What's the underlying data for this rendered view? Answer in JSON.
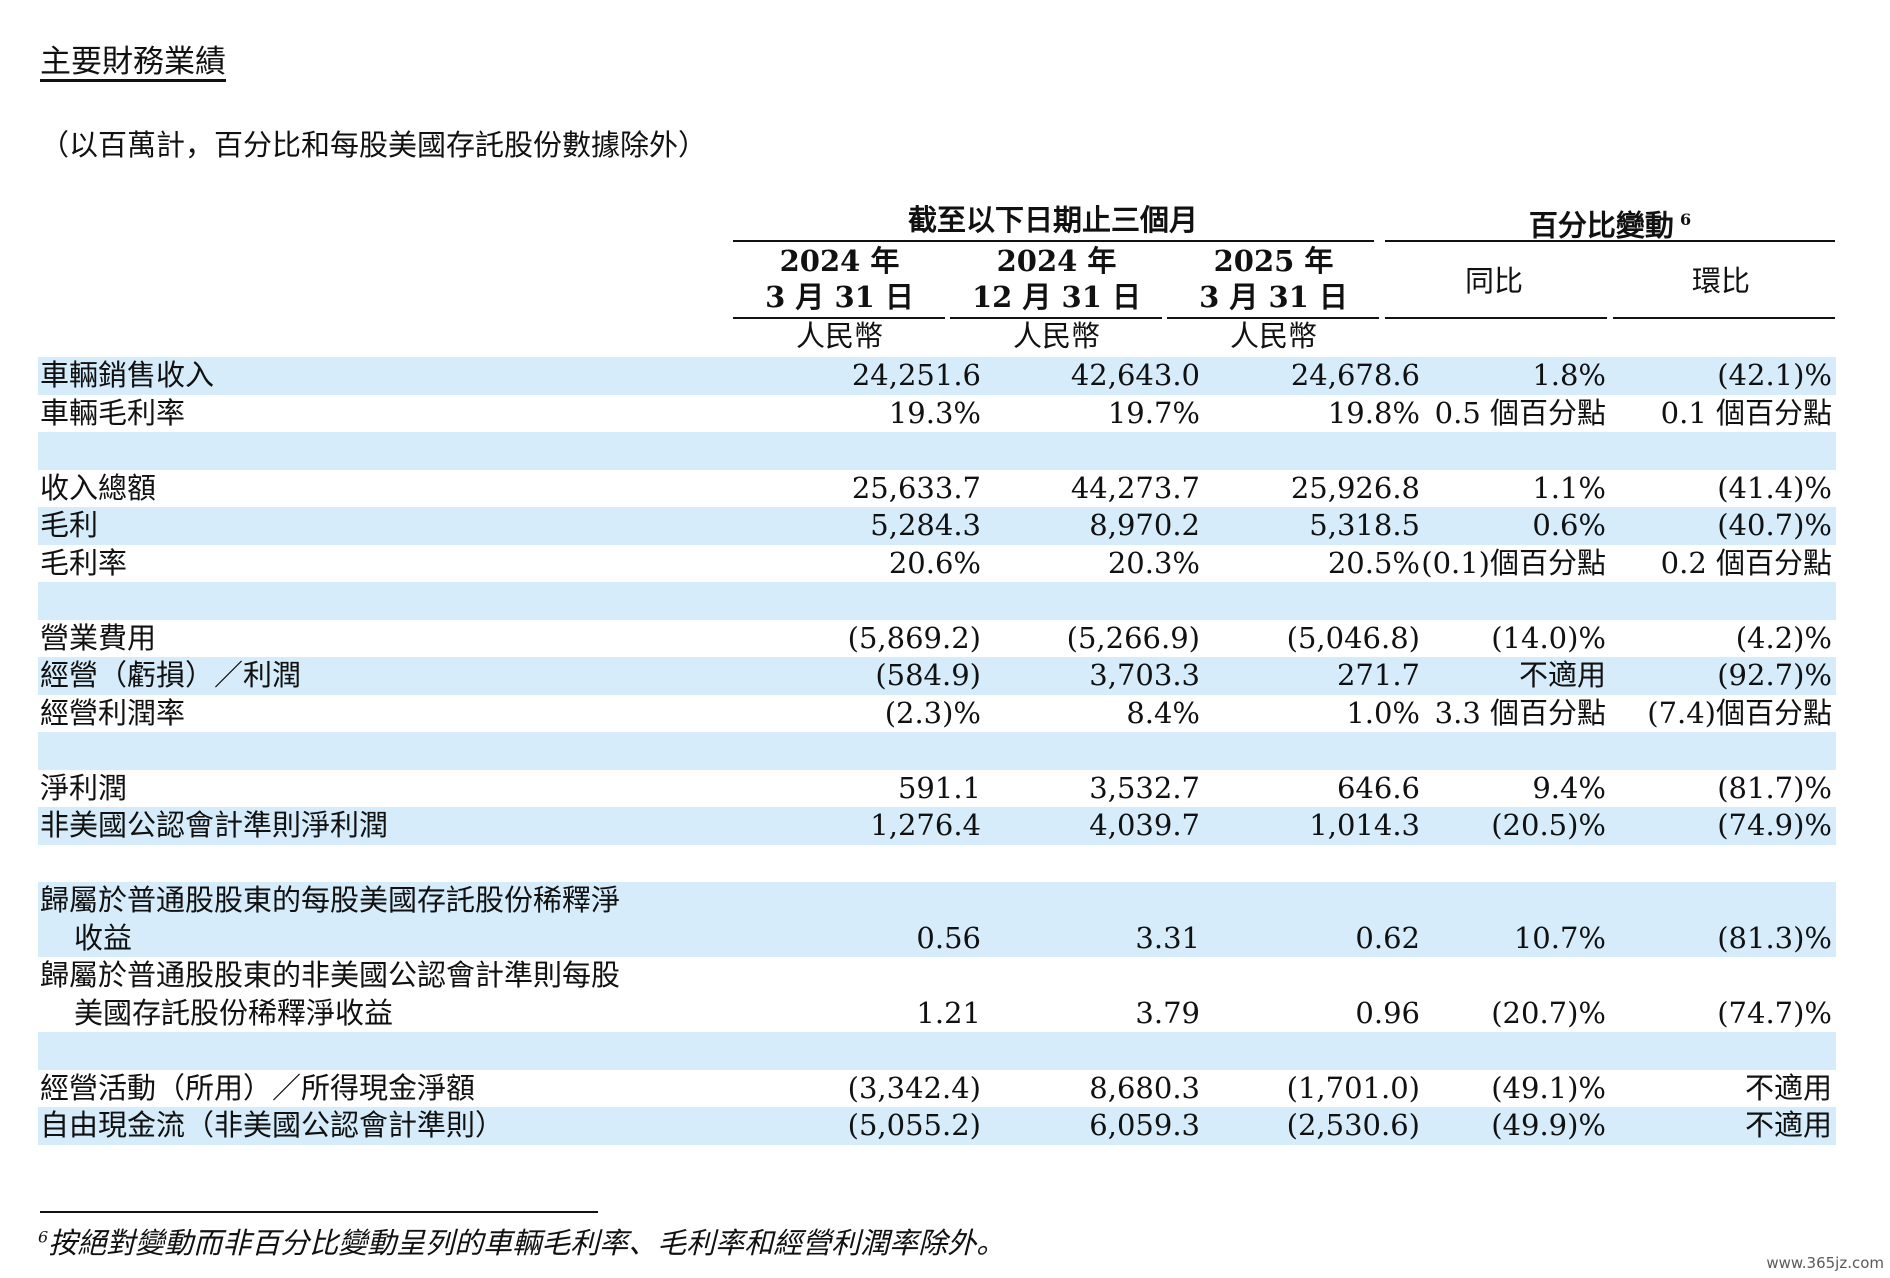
{
  "title": "主要財務業績",
  "subtitle": "（以百萬計，百分比和每股美國存託股份數據除外）",
  "header": {
    "group_period": "截至以下日期止三個月",
    "group_change": "百分比變動",
    "group_change_note": "6",
    "columns": [
      {
        "year": "2024 年",
        "date": "3 月 31 日",
        "currency": "人民幣"
      },
      {
        "year": "2024 年",
        "date": "12 月 31 日",
        "currency": "人民幣"
      },
      {
        "year": "2025 年",
        "date": "3 月 31 日",
        "currency": "人民幣"
      }
    ],
    "yoy": "同比",
    "qoq": "環比"
  },
  "rows": [
    {
      "label": "車輛銷售收入",
      "v": [
        "24,251.6",
        "42,643.0",
        "24,678.6",
        "1.8%",
        "(42.1)%"
      ]
    },
    {
      "label": "車輛毛利率",
      "v": [
        "19.3%",
        "19.7%",
        "19.8%",
        "0.5 個百分點",
        "0.1 個百分點"
      ]
    },
    {
      "label": "收入總額",
      "v": [
        "25,633.7",
        "44,273.7",
        "25,926.8",
        "1.1%",
        "(41.4)%"
      ]
    },
    {
      "label": "毛利",
      "v": [
        "5,284.3",
        "8,970.2",
        "5,318.5",
        "0.6%",
        "(40.7)%"
      ]
    },
    {
      "label": "毛利率",
      "v": [
        "20.6%",
        "20.3%",
        "20.5%",
        "(0.1)個百分點",
        "0.2 個百分點"
      ]
    },
    {
      "label": "營業費用",
      "v": [
        "(5,869.2)",
        "(5,266.9)",
        "(5,046.8)",
        "(14.0)%",
        "(4.2)%"
      ]
    },
    {
      "label": "經營（虧損）／利潤",
      "v": [
        "(584.9)",
        "3,703.3",
        "271.7",
        "不適用",
        "(92.7)%"
      ]
    },
    {
      "label": "經營利潤率",
      "v": [
        "(2.3)%",
        "8.4%",
        "1.0%",
        "3.3 個百分點",
        "(7.4)個百分點"
      ]
    },
    {
      "label": "淨利潤",
      "v": [
        "591.1",
        "3,532.7",
        "646.6",
        "9.4%",
        "(81.7)%"
      ]
    },
    {
      "label": "非美國公認會計準則淨利潤",
      "v": [
        "1,276.4",
        "4,039.7",
        "1,014.3",
        "(20.5)%",
        "(74.9)%"
      ]
    },
    {
      "label": "歸屬於普通股股東的每股美國存託股份稀釋淨",
      "label2": "收益",
      "v": [
        "0.56",
        "3.31",
        "0.62",
        "10.7%",
        "(81.3)%"
      ]
    },
    {
      "label": "歸屬於普通股股東的非美國公認會計準則每股",
      "label2": "美國存託股份稀釋淨收益",
      "v": [
        "1.21",
        "3.79",
        "0.96",
        "(20.7)%",
        "(74.7)%"
      ]
    },
    {
      "label": "經營活動（所用）／所得現金淨額",
      "v": [
        "(3,342.4)",
        "8,680.3",
        "(1,701.0)",
        "(49.1)%",
        "不適用"
      ]
    },
    {
      "label": "自由現金流（非美國公認會計準則）",
      "v": [
        "(5,055.2)",
        "6,059.3",
        "(2,530.6)",
        "(49.9)%",
        "不適用"
      ]
    }
  ],
  "footnote": {
    "mark": "6",
    "text": "按絕對變動而非百分比變動呈列的車輛毛利率、毛利率和經營利潤率除外。"
  },
  "watermark": "www.365jz.com",
  "colors": {
    "row_shade": "#d6ecfa",
    "text": "#111111"
  }
}
